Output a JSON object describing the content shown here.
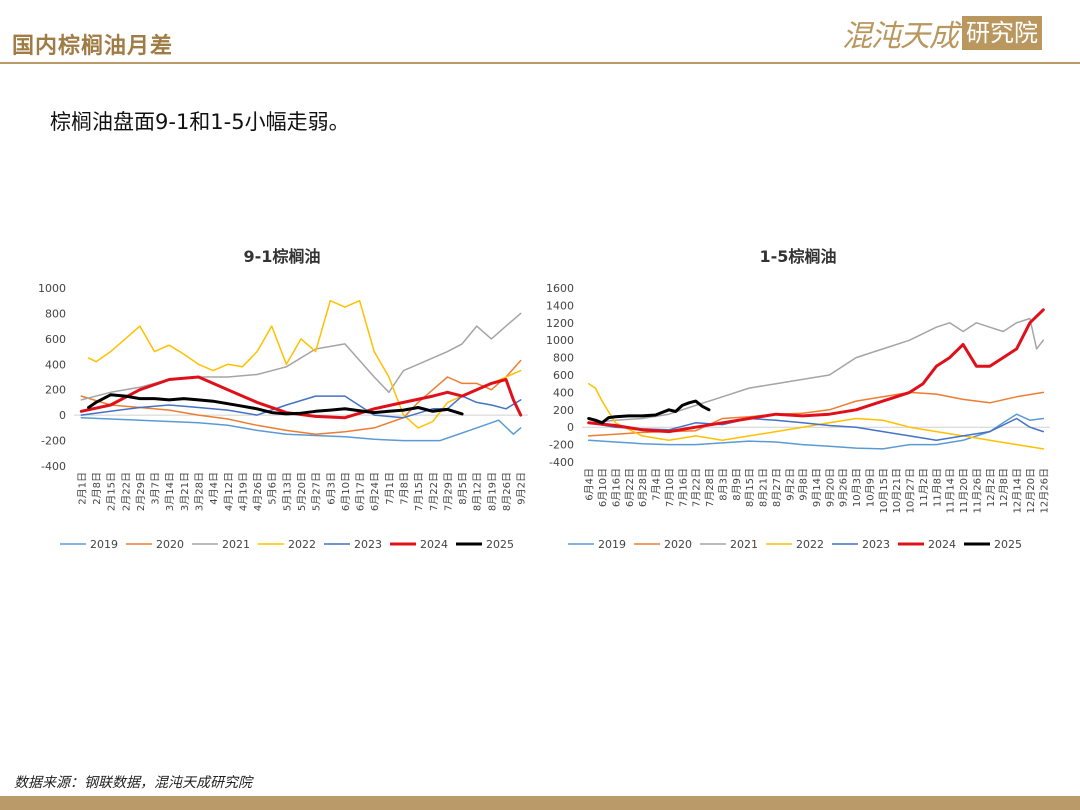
{
  "header": {
    "title": "国内棕榈油月差",
    "logo_text": "混沌天成",
    "logo_box_text": "研究院"
  },
  "subtitle": "棕榈油盘面9-1和1-5小幅走弱。",
  "source": "数据来源：钢联数据，混沌天成研究院",
  "legend_labels": [
    "2019",
    "2020",
    "2021",
    "2022",
    "2023",
    "2024",
    "2025"
  ],
  "colors": {
    "2019": "#5b9bd5",
    "2020": "#ed7d31",
    "2021": "#a5a5a5",
    "2022": "#ffc000",
    "2023": "#4472c4",
    "2024": "#e0101a",
    "2025": "#000000",
    "brand": "#b99a68"
  },
  "chart_data": [
    {
      "type": "line",
      "title": "9-1棕榈油",
      "ylim": [
        -400,
        1000
      ],
      "yticks": [
        -400,
        -200,
        0,
        200,
        400,
        600,
        800,
        1000
      ],
      "xticks": [
        "2月1日",
        "2月8日",
        "2月15日",
        "2月22日",
        "2月29日",
        "3月7日",
        "3月14日",
        "3月21日",
        "3月28日",
        "4月4日",
        "4月12日",
        "4月19日",
        "4月26日",
        "5月6日",
        "5月13日",
        "5月20日",
        "5月27日",
        "6月3日",
        "6月10日",
        "6月17日",
        "6月24日",
        "7月1日",
        "7月8日",
        "7月15日",
        "7月22日",
        "7月29日",
        "8月5日",
        "8月12日",
        "8月19日",
        "8月26日",
        "9月2日"
      ],
      "series": [
        {
          "name": "2019",
          "x": [
            0,
            2,
            4,
            6,
            8,
            10,
            12,
            14,
            16,
            18,
            20,
            22,
            23.5,
            24.5,
            25.5,
            26.5,
            27.5,
            28.5,
            29.5,
            30
          ],
          "values": [
            -20,
            -30,
            -40,
            -50,
            -60,
            -80,
            -120,
            -150,
            -160,
            -170,
            -190,
            -200,
            -200,
            -200,
            -160,
            -120,
            -80,
            -40,
            -150,
            -100
          ]
        },
        {
          "name": "2020",
          "x": [
            0,
            2,
            4,
            6,
            8,
            10,
            12,
            14,
            16,
            18,
            20,
            22,
            23,
            24,
            25,
            26,
            27,
            28,
            29,
            30
          ],
          "values": [
            150,
            80,
            60,
            40,
            0,
            -30,
            -80,
            -120,
            -150,
            -130,
            -100,
            -20,
            100,
            200,
            300,
            250,
            250,
            200,
            300,
            430
          ]
        },
        {
          "name": "2021",
          "x": [
            0,
            2,
            4,
            6,
            8,
            10,
            12,
            14,
            16,
            18,
            20,
            21,
            22,
            23,
            24,
            25,
            26,
            27,
            28,
            29,
            30
          ],
          "values": [
            120,
            180,
            220,
            280,
            300,
            300,
            320,
            380,
            520,
            560,
            300,
            180,
            350,
            400,
            450,
            500,
            560,
            700,
            600,
            700,
            800
          ]
        },
        {
          "name": "2022",
          "x": [
            0.5,
            1,
            2,
            3,
            4,
            5,
            6,
            7,
            8,
            9,
            10,
            11,
            12,
            13,
            14,
            15,
            16,
            17,
            18,
            19,
            20,
            21,
            22,
            23,
            24,
            25,
            26,
            27,
            28,
            29,
            30
          ],
          "values": [
            450,
            420,
            500,
            600,
            700,
            500,
            550,
            480,
            400,
            350,
            400,
            380,
            500,
            700,
            400,
            600,
            500,
            900,
            850,
            900,
            500,
            300,
            0,
            -100,
            -50,
            100,
            150,
            200,
            250,
            300,
            350
          ]
        },
        {
          "name": "2023",
          "x": [
            0,
            2,
            4,
            6,
            8,
            10,
            12,
            14,
            16,
            18,
            20,
            22,
            24,
            25,
            26,
            27,
            28,
            29,
            30
          ],
          "values": [
            0,
            30,
            60,
            80,
            60,
            40,
            0,
            80,
            150,
            150,
            0,
            -20,
            50,
            50,
            150,
            100,
            80,
            50,
            120
          ]
        },
        {
          "name": "2024",
          "x": [
            0,
            2,
            4,
            6,
            8,
            10,
            12,
            14,
            16,
            18,
            20,
            22,
            24,
            25,
            26,
            27,
            28,
            29,
            29.5,
            30
          ],
          "values": [
            30,
            80,
            200,
            280,
            300,
            200,
            100,
            20,
            -10,
            -20,
            50,
            100,
            150,
            180,
            150,
            200,
            250,
            280,
            120,
            0
          ]
        },
        {
          "name": "2025",
          "x": [
            0.5,
            1,
            2,
            3,
            4,
            5,
            6,
            7,
            8,
            9,
            10,
            11,
            12,
            13,
            14,
            15,
            16,
            17,
            18,
            19,
            20,
            21,
            22,
            23,
            24,
            25,
            26
          ],
          "values": [
            60,
            100,
            160,
            150,
            130,
            130,
            120,
            130,
            120,
            110,
            90,
            70,
            50,
            20,
            10,
            15,
            30,
            40,
            50,
            35,
            20,
            30,
            40,
            60,
            30,
            45,
            10
          ]
        }
      ]
    },
    {
      "type": "line",
      "title": "1-5棕榈油",
      "ylim": [
        -400,
        1600
      ],
      "yticks": [
        -400,
        -200,
        0,
        200,
        400,
        600,
        800,
        1000,
        1200,
        1400,
        1600
      ],
      "xticks": [
        "6月4日",
        "6月10日",
        "6月16日",
        "6月22日",
        "6月28日",
        "7月4日",
        "7月10日",
        "7月16日",
        "7月22日",
        "7月28日",
        "8月3日",
        "8月9日",
        "8月15日",
        "8月21日",
        "8月27日",
        "9月2日",
        "9月8日",
        "9月14日",
        "9月20日",
        "9月26日",
        "10月3日",
        "10月9日",
        "10月15日",
        "10月21日",
        "10月27日",
        "11月2日",
        "11月8日",
        "11月14日",
        "11月20日",
        "11月26日",
        "12月2日",
        "12月8日",
        "12月14日",
        "12月20日",
        "12月26日"
      ],
      "series": [
        {
          "name": "2019",
          "x": [
            0,
            2,
            4,
            6,
            8,
            10,
            12,
            14,
            16,
            18,
            20,
            22,
            24,
            26,
            28,
            30,
            31,
            32,
            33,
            34
          ],
          "values": [
            -150,
            -170,
            -190,
            -200,
            -200,
            -180,
            -160,
            -170,
            -200,
            -220,
            -240,
            -250,
            -200,
            -200,
            -150,
            -50,
            50,
            150,
            80,
            100
          ]
        },
        {
          "name": "2020",
          "x": [
            0,
            2,
            4,
            6,
            8,
            10,
            12,
            14,
            16,
            18,
            20,
            22,
            24,
            26,
            28,
            30,
            32,
            34
          ],
          "values": [
            -100,
            -80,
            -60,
            -50,
            -40,
            100,
            120,
            150,
            160,
            200,
            300,
            350,
            400,
            380,
            320,
            280,
            350,
            400
          ]
        },
        {
          "name": "2021",
          "x": [
            0,
            2,
            4,
            6,
            8,
            10,
            12,
            14,
            16,
            18,
            20,
            22,
            24,
            26,
            27,
            28,
            29,
            30,
            31,
            32,
            33,
            33.5,
            34
          ],
          "values": [
            50,
            80,
            100,
            150,
            250,
            350,
            450,
            500,
            550,
            600,
            800,
            900,
            1000,
            1150,
            1200,
            1100,
            1200,
            1150,
            1100,
            1200,
            1250,
            900,
            1000
          ]
        },
        {
          "name": "2022",
          "x": [
            0,
            0.5,
            1,
            2,
            4,
            6,
            8,
            10,
            12,
            14,
            16,
            18,
            20,
            22,
            24,
            26,
            28,
            30,
            32,
            34
          ],
          "values": [
            500,
            450,
            300,
            50,
            -100,
            -150,
            -100,
            -150,
            -100,
            -50,
            0,
            50,
            100,
            80,
            0,
            -50,
            -100,
            -150,
            -200,
            -250
          ]
        },
        {
          "name": "2023",
          "x": [
            0,
            2,
            4,
            6,
            8,
            10,
            12,
            14,
            16,
            18,
            20,
            22,
            24,
            26,
            28,
            30,
            32,
            33,
            34
          ],
          "values": [
            50,
            0,
            -20,
            -30,
            50,
            30,
            100,
            80,
            50,
            20,
            0,
            -50,
            -100,
            -150,
            -100,
            -50,
            100,
            0,
            -50
          ]
        },
        {
          "name": "2024",
          "x": [
            0,
            2,
            4,
            6,
            8,
            10,
            12,
            14,
            16,
            18,
            20,
            22,
            24,
            25,
            26,
            27,
            28,
            29,
            30,
            31,
            32,
            33,
            34
          ],
          "values": [
            50,
            20,
            -30,
            -50,
            0,
            50,
            100,
            150,
            130,
            150,
            200,
            300,
            400,
            500,
            700,
            800,
            950,
            700,
            700,
            800,
            900,
            1200,
            1350
          ]
        },
        {
          "name": "2025",
          "x": [
            0,
            0.5,
            1,
            1.5,
            2,
            3,
            4,
            5,
            6,
            6.5,
            7,
            7.5,
            8,
            8.5,
            9
          ],
          "values": [
            100,
            80,
            50,
            110,
            120,
            130,
            130,
            140,
            200,
            180,
            250,
            280,
            300,
            240,
            200
          ]
        }
      ]
    }
  ]
}
